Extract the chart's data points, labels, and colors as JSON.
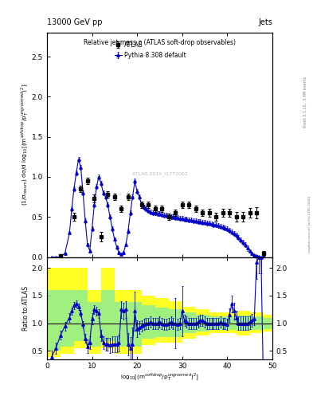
{
  "title_left": "13000 GeV pp",
  "title_right": "Jets",
  "plot_title": "Relative jet mass ρ (ATLAS soft-drop observables)",
  "ylabel_main": "(1/σ$_{resum}$) dσ/d log$_{10}$[(m$^{soft drop}$/p$_T^{ungroomed}$)$^2$]",
  "ylabel_ratio": "Ratio to ATLAS",
  "xlabel": "log$_{10}$[(m$^{soft drop}$/p$_T^{ungroomed}$)$^2$]",
  "right_label": "Rivet 3.1.10,  3.4M events",
  "right_label2": "mcplots.cern.ch [arXiv:1306.3436]",
  "watermark": "ATLAS 2019_I1772062",
  "atlas_x": [
    3,
    6,
    7.5,
    9,
    10.5,
    12,
    13.5,
    15,
    16.5,
    18,
    21,
    22.5,
    24,
    25.5,
    27,
    28.5,
    30,
    31.5,
    33,
    34.5,
    36,
    37.5,
    39,
    40.5,
    42,
    43.5,
    45,
    46.5,
    48
  ],
  "atlas_y": [
    0.02,
    0.5,
    0.85,
    0.95,
    0.73,
    0.25,
    0.78,
    0.75,
    0.6,
    0.75,
    0.65,
    0.65,
    0.6,
    0.6,
    0.5,
    0.55,
    0.65,
    0.65,
    0.6,
    0.55,
    0.55,
    0.5,
    0.55,
    0.55,
    0.5,
    0.5,
    0.55,
    0.55,
    0.05
  ],
  "atlas_yerr": [
    0.02,
    0.05,
    0.04,
    0.04,
    0.05,
    0.06,
    0.04,
    0.04,
    0.04,
    0.04,
    0.04,
    0.04,
    0.04,
    0.04,
    0.04,
    0.04,
    0.04,
    0.04,
    0.04,
    0.04,
    0.05,
    0.05,
    0.05,
    0.05,
    0.06,
    0.06,
    0.06,
    0.07,
    0.03
  ],
  "pythia_x": [
    1.0,
    2.0,
    3.0,
    4.0,
    5.0,
    5.5,
    6.0,
    6.5,
    7.0,
    7.5,
    8.0,
    8.5,
    9.0,
    9.5,
    10.0,
    10.5,
    11.0,
    11.5,
    12.0,
    12.5,
    13.0,
    13.5,
    14.0,
    14.5,
    15.0,
    15.5,
    16.0,
    16.5,
    17.0,
    17.5,
    18.0,
    18.5,
    19.0,
    19.5,
    20.0,
    20.5,
    21.0,
    21.5,
    22.0,
    22.5,
    23.0,
    23.5,
    24.0,
    24.5,
    25.0,
    25.5,
    26.0,
    26.5,
    27.0,
    27.5,
    28.0,
    28.5,
    29.0,
    29.5,
    30.0,
    30.5,
    31.0,
    31.5,
    32.0,
    32.5,
    33.0,
    33.5,
    34.0,
    34.5,
    35.0,
    35.5,
    36.0,
    36.5,
    37.0,
    37.5,
    38.0,
    38.5,
    39.0,
    39.5,
    40.0,
    40.5,
    41.0,
    41.5,
    42.0,
    42.5,
    43.0,
    43.5,
    44.0,
    44.5,
    45.0,
    45.5,
    46.0,
    46.5,
    47.0,
    47.5,
    48.0
  ],
  "pythia_y": [
    0.0,
    0.0,
    0.0,
    0.05,
    0.3,
    0.6,
    0.85,
    1.05,
    1.22,
    1.12,
    0.8,
    0.45,
    0.15,
    0.08,
    0.35,
    0.65,
    0.88,
    1.0,
    0.92,
    0.8,
    0.75,
    0.65,
    0.5,
    0.35,
    0.22,
    0.12,
    0.06,
    0.04,
    0.06,
    0.15,
    0.32,
    0.55,
    0.75,
    0.95,
    0.82,
    0.75,
    0.65,
    0.62,
    0.6,
    0.58,
    0.56,
    0.55,
    0.55,
    0.54,
    0.54,
    0.53,
    0.52,
    0.52,
    0.51,
    0.5,
    0.5,
    0.49,
    0.49,
    0.48,
    0.48,
    0.47,
    0.47,
    0.46,
    0.46,
    0.45,
    0.45,
    0.44,
    0.44,
    0.43,
    0.43,
    0.42,
    0.42,
    0.41,
    0.4,
    0.4,
    0.39,
    0.38,
    0.37,
    0.36,
    0.35,
    0.33,
    0.31,
    0.29,
    0.27,
    0.24,
    0.21,
    0.18,
    0.15,
    0.11,
    0.08,
    0.05,
    0.03,
    0.02,
    0.01,
    0.0,
    0.0
  ],
  "pythia_yerr": [
    0.0,
    0.0,
    0.0,
    0.01,
    0.02,
    0.03,
    0.03,
    0.03,
    0.03,
    0.03,
    0.03,
    0.03,
    0.02,
    0.02,
    0.03,
    0.03,
    0.03,
    0.03,
    0.03,
    0.03,
    0.03,
    0.03,
    0.03,
    0.03,
    0.02,
    0.02,
    0.02,
    0.01,
    0.02,
    0.02,
    0.03,
    0.03,
    0.03,
    0.03,
    0.03,
    0.03,
    0.03,
    0.03,
    0.03,
    0.03,
    0.03,
    0.03,
    0.03,
    0.03,
    0.03,
    0.03,
    0.03,
    0.03,
    0.03,
    0.03,
    0.03,
    0.03,
    0.03,
    0.03,
    0.03,
    0.03,
    0.03,
    0.03,
    0.03,
    0.03,
    0.03,
    0.03,
    0.03,
    0.03,
    0.03,
    0.03,
    0.03,
    0.03,
    0.03,
    0.03,
    0.03,
    0.03,
    0.03,
    0.03,
    0.03,
    0.03,
    0.03,
    0.03,
    0.03,
    0.03,
    0.03,
    0.03,
    0.03,
    0.03,
    0.02,
    0.02,
    0.01,
    0.01,
    0.01,
    0.0,
    0.0
  ],
  "ratio_x": [
    1.0,
    2.0,
    3.0,
    4.0,
    5.0,
    5.5,
    6.0,
    6.5,
    7.0,
    7.5,
    8.0,
    8.5,
    9.0,
    9.5,
    10.0,
    10.5,
    11.0,
    11.5,
    12.0,
    12.5,
    13.0,
    13.5,
    14.0,
    14.5,
    15.0,
    15.5,
    16.0,
    16.5,
    17.0,
    17.5,
    18.0,
    18.5,
    19.0,
    19.5,
    20.0,
    20.5,
    21.0,
    21.5,
    22.0,
    22.5,
    23.0,
    23.5,
    24.0,
    24.5,
    25.0,
    25.5,
    26.0,
    26.5,
    27.0,
    27.5,
    28.0,
    28.5,
    29.0,
    29.5,
    30.0,
    30.5,
    31.0,
    31.5,
    32.0,
    32.5,
    33.0,
    33.5,
    34.0,
    34.5,
    35.0,
    35.5,
    36.0,
    36.5,
    37.0,
    37.5,
    38.0,
    38.5,
    39.0,
    39.5,
    40.0,
    40.5,
    41.0,
    41.5,
    42.0,
    42.5,
    43.0,
    43.5,
    44.0,
    44.5,
    45.0,
    45.5,
    46.0,
    46.5,
    47.0,
    47.5,
    48.0
  ],
  "ratio_y": [
    0.38,
    0.55,
    0.78,
    0.95,
    1.1,
    1.22,
    1.32,
    1.35,
    1.3,
    1.18,
    0.98,
    0.72,
    0.58,
    0.65,
    1.08,
    1.25,
    1.22,
    1.18,
    0.78,
    0.65,
    0.62,
    0.62,
    0.6,
    0.62,
    0.62,
    0.62,
    0.64,
    1.25,
    1.22,
    1.25,
    0.62,
    0.55,
    0.62,
    1.22,
    0.9,
    0.92,
    0.95,
    0.98,
    1.0,
    1.0,
    1.02,
    1.0,
    1.0,
    1.0,
    1.02,
    1.0,
    0.98,
    0.98,
    1.0,
    1.02,
    1.0,
    1.0,
    0.98,
    1.0,
    1.22,
    1.05,
    1.02,
    1.0,
    1.0,
    1.0,
    1.0,
    1.02,
    1.05,
    1.05,
    1.02,
    1.0,
    1.0,
    1.0,
    1.0,
    1.0,
    1.0,
    1.02,
    1.0,
    1.0,
    0.98,
    1.15,
    1.35,
    1.22,
    1.1,
    1.0,
    1.0,
    1.0,
    1.0,
    1.0,
    1.02,
    1.05,
    1.08,
    2.1,
    2.2,
    2.2,
    0.0
  ],
  "ratio_yerr": [
    0.12,
    0.1,
    0.08,
    0.08,
    0.08,
    0.07,
    0.07,
    0.07,
    0.06,
    0.06,
    0.06,
    0.08,
    0.12,
    0.12,
    0.1,
    0.08,
    0.08,
    0.08,
    0.1,
    0.12,
    0.12,
    0.12,
    0.14,
    0.15,
    0.15,
    0.15,
    0.15,
    0.15,
    0.15,
    0.15,
    0.2,
    0.2,
    0.3,
    0.35,
    0.15,
    0.12,
    0.1,
    0.1,
    0.1,
    0.1,
    0.1,
    0.1,
    0.1,
    0.1,
    0.1,
    0.1,
    0.1,
    0.1,
    0.1,
    0.1,
    0.1,
    0.45,
    0.1,
    0.1,
    0.45,
    0.1,
    0.1,
    0.1,
    0.1,
    0.1,
    0.1,
    0.1,
    0.1,
    0.1,
    0.1,
    0.1,
    0.1,
    0.1,
    0.1,
    0.1,
    0.1,
    0.1,
    0.1,
    0.1,
    0.1,
    0.12,
    0.15,
    0.15,
    0.12,
    0.12,
    0.12,
    0.12,
    0.12,
    0.12,
    0.12,
    0.12,
    0.12,
    0.3,
    0.3,
    0.3,
    0.0
  ],
  "band_x_edges": [
    0,
    3,
    6,
    9,
    12,
    15,
    18,
    21,
    24,
    27,
    30,
    33,
    36,
    39,
    42,
    45,
    48,
    51
  ],
  "yellow_lo": [
    0.38,
    0.45,
    0.55,
    0.45,
    0.55,
    0.45,
    0.45,
    0.6,
    0.65,
    0.65,
    0.72,
    0.78,
    0.82,
    0.82,
    0.78,
    0.82,
    0.85,
    0.85
  ],
  "yellow_hi": [
    2.0,
    2.0,
    2.0,
    1.6,
    2.0,
    1.6,
    1.6,
    1.5,
    1.45,
    1.4,
    1.3,
    1.25,
    1.2,
    1.2,
    1.22,
    1.2,
    1.15,
    1.15
  ],
  "green_lo": [
    0.5,
    0.58,
    0.68,
    0.58,
    0.68,
    0.58,
    0.58,
    0.72,
    0.75,
    0.75,
    0.82,
    0.85,
    0.88,
    0.88,
    0.86,
    0.88,
    0.9,
    0.9
  ],
  "green_hi": [
    1.6,
    1.6,
    1.6,
    1.38,
    1.6,
    1.38,
    1.38,
    1.32,
    1.28,
    1.25,
    1.2,
    1.16,
    1.12,
    1.12,
    1.14,
    1.12,
    1.1,
    1.1
  ],
  "main_ylim": [
    0,
    2.8
  ],
  "ratio_ylim": [
    0.35,
    2.2
  ],
  "xlim": [
    0,
    50
  ],
  "xticks": [
    0,
    10,
    20,
    30,
    40,
    50
  ],
  "yticks_main": [
    0.0,
    0.5,
    1.0,
    1.5,
    2.0,
    2.5
  ],
  "yticks_ratio": [
    0.5,
    1.0,
    1.5,
    2.0
  ],
  "blue_color": "#0000cc",
  "black_color": "#000000",
  "yellow_color": "#ffff00",
  "green_color": "#90ee90",
  "bg_color": "#ffffff"
}
